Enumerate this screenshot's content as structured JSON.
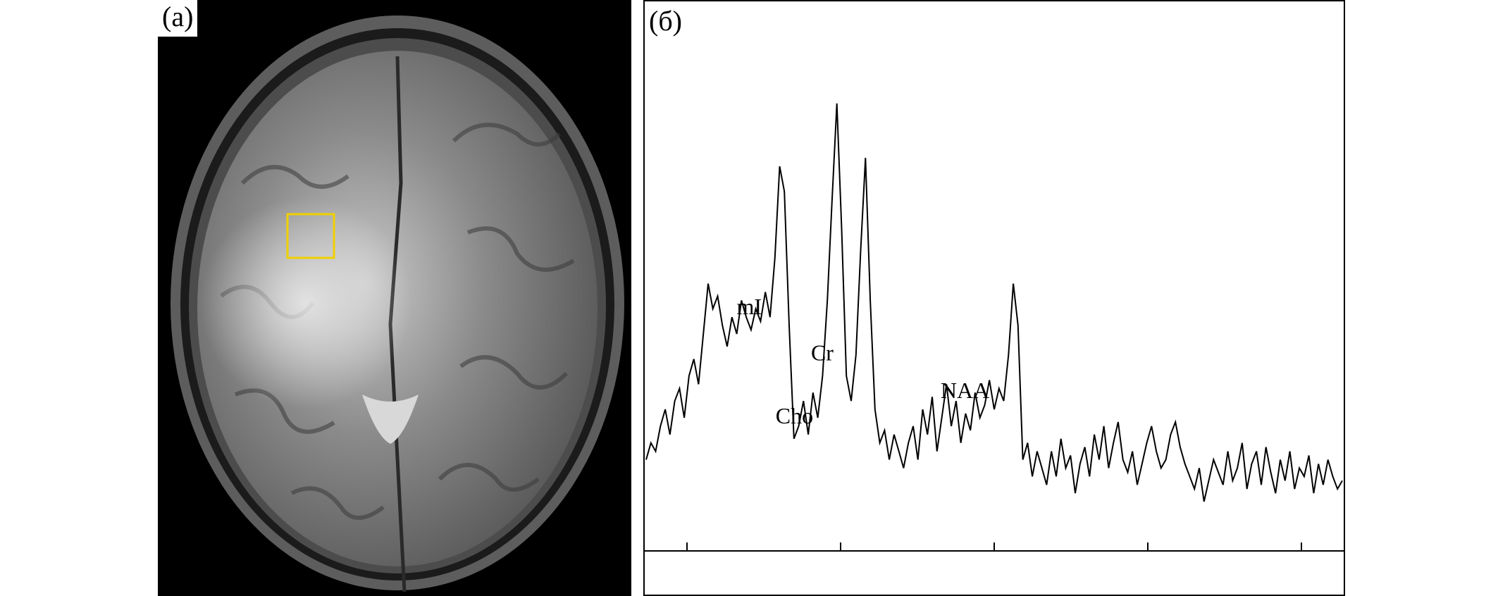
{
  "panel_a": {
    "label": "(а)",
    "roi_color": "#f0d000"
  },
  "panel_b": {
    "label": "(б)",
    "chart_data": {
      "type": "line",
      "series": [
        {
          "values": [
            0.1,
            0.14,
            0.12,
            0.18,
            0.22,
            0.16,
            0.24,
            0.27,
            0.2,
            0.3,
            0.34,
            0.28,
            0.4,
            0.52,
            0.46,
            0.49,
            0.42,
            0.37,
            0.44,
            0.4,
            0.48,
            0.44,
            0.41,
            0.46,
            0.43,
            0.5,
            0.44,
            0.58,
            0.8,
            0.74,
            0.42,
            0.15,
            0.18,
            0.24,
            0.16,
            0.26,
            0.2,
            0.3,
            0.48,
            0.72,
            0.95,
            0.65,
            0.3,
            0.24,
            0.35,
            0.6,
            0.82,
            0.48,
            0.22,
            0.14,
            0.17,
            0.1,
            0.16,
            0.12,
            0.08,
            0.14,
            0.18,
            0.1,
            0.22,
            0.16,
            0.25,
            0.12,
            0.2,
            0.28,
            0.18,
            0.24,
            0.14,
            0.21,
            0.17,
            0.26,
            0.2,
            0.23,
            0.29,
            0.22,
            0.27,
            0.24,
            0.35,
            0.52,
            0.42,
            0.1,
            0.14,
            0.06,
            0.12,
            0.08,
            0.04,
            0.12,
            0.06,
            0.15,
            0.08,
            0.11,
            0.02,
            0.09,
            0.13,
            0.06,
            0.16,
            0.1,
            0.18,
            0.08,
            0.14,
            0.19,
            0.1,
            0.07,
            0.12,
            0.04,
            0.09,
            0.14,
            0.18,
            0.12,
            0.08,
            0.1,
            0.16,
            0.19,
            0.13,
            0.09,
            0.06,
            0.03,
            0.08,
            0.0,
            0.05,
            0.1,
            0.07,
            0.04,
            0.12,
            0.05,
            0.08,
            0.14,
            0.03,
            0.09,
            0.12,
            0.04,
            0.13,
            0.07,
            0.02,
            0.1,
            0.05,
            0.12,
            0.03,
            0.08,
            0.06,
            0.11,
            0.02,
            0.09,
            0.04,
            0.1,
            0.06,
            0.03,
            0.05
          ]
        }
      ],
      "annotations": [
        {
          "text": "mI",
          "at": 0.148
        },
        {
          "text": "Cho",
          "at": 0.213
        },
        {
          "text": "Cr",
          "at": 0.253
        },
        {
          "text": "NAA",
          "at": 0.458
        }
      ],
      "x_ticks": [
        {
          "label": ""
        },
        {
          "label": ""
        },
        {
          "label": ""
        },
        {
          "label": ""
        },
        {
          "label": ""
        }
      ],
      "grid": false
    }
  }
}
